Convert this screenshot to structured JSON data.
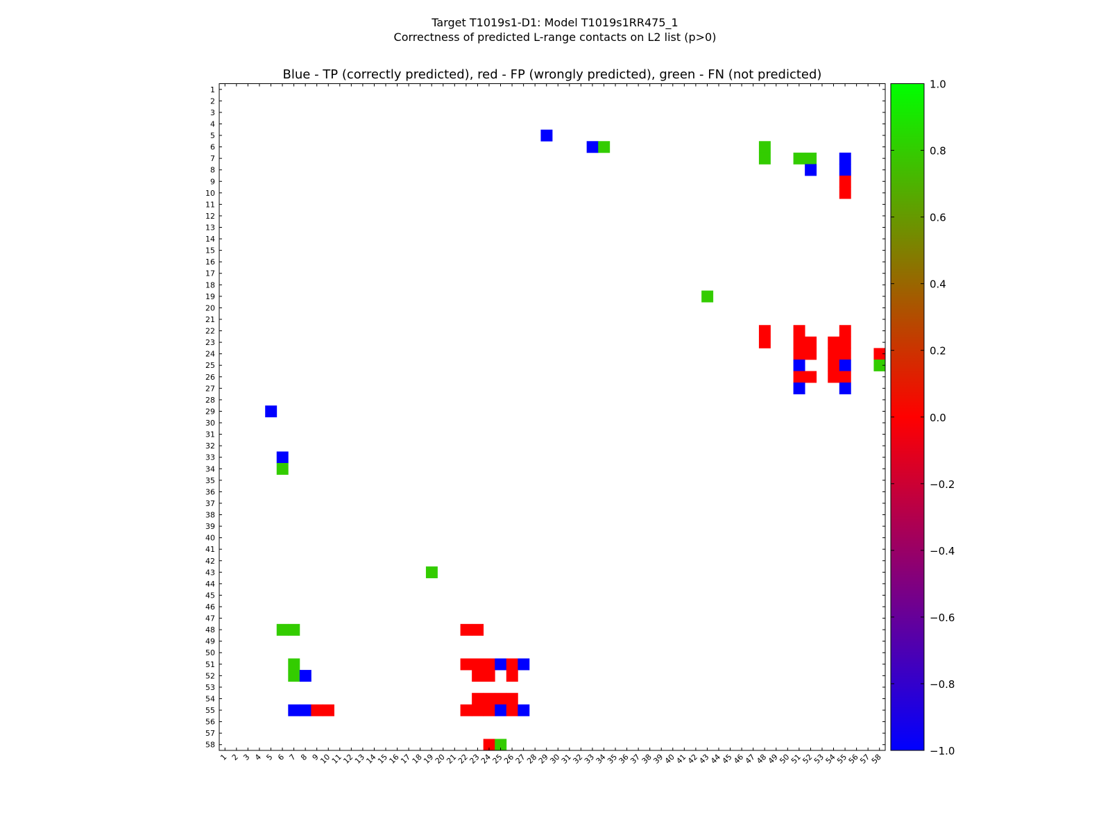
{
  "chart_data": {
    "type": "heatmap",
    "suptitle_line1": "Target T1019s1-D1: Model T1019s1RR475_1",
    "suptitle_line2": "Correctness of predicted L-range contacts on L2 list (p>0)",
    "title": "Blue - TP (correctly predicted), red - FP (wrongly predicted), green - FN (not predicted)",
    "n_residues": 58,
    "x_ticks": [
      "1",
      "2",
      "3",
      "4",
      "5",
      "6",
      "7",
      "8",
      "9",
      "10",
      "11",
      "12",
      "13",
      "14",
      "15",
      "16",
      "17",
      "18",
      "19",
      "20",
      "21",
      "22",
      "23",
      "24",
      "25",
      "26",
      "27",
      "28",
      "29",
      "30",
      "31",
      "32",
      "33",
      "34",
      "35",
      "36",
      "37",
      "38",
      "39",
      "40",
      "41",
      "42",
      "43",
      "44",
      "45",
      "46",
      "47",
      "48",
      "49",
      "50",
      "51",
      "52",
      "53",
      "54",
      "55",
      "56",
      "57",
      "58"
    ],
    "y_ticks": [
      "1",
      "2",
      "3",
      "4",
      "5",
      "6",
      "7",
      "8",
      "9",
      "10",
      "11",
      "12",
      "13",
      "14",
      "15",
      "16",
      "17",
      "18",
      "19",
      "20",
      "21",
      "22",
      "23",
      "24",
      "25",
      "26",
      "27",
      "28",
      "29",
      "30",
      "31",
      "32",
      "33",
      "34",
      "35",
      "36",
      "37",
      "38",
      "39",
      "40",
      "41",
      "42",
      "43",
      "44",
      "45",
      "46",
      "47",
      "48",
      "49",
      "50",
      "51",
      "52",
      "53",
      "54",
      "55",
      "56",
      "57",
      "58"
    ],
    "colorbar": {
      "min": -1.0,
      "max": 1.0,
      "ticks": [
        "1.0",
        "0.8",
        "0.6",
        "0.4",
        "0.2",
        "0.0",
        "−0.2",
        "−0.4",
        "−0.6",
        "−0.8",
        "−1.0"
      ],
      "tick_values": [
        1.0,
        0.8,
        0.6,
        0.4,
        0.2,
        0.0,
        -0.2,
        -0.4,
        -0.6,
        -0.8,
        -1.0
      ],
      "colors": [
        "#0000ff",
        "#ff0000",
        "#00ff00"
      ]
    },
    "categories": {
      "TP": {
        "value": -1.0,
        "color": "#0000ff"
      },
      "FP": {
        "value": 0.0,
        "color": "#ff0000"
      },
      "FN": {
        "value": 0.8,
        "color": "#33cc00"
      }
    },
    "cells": [
      {
        "x": 29,
        "y": 5,
        "c": "TP"
      },
      {
        "x": 33,
        "y": 6,
        "c": "TP"
      },
      {
        "x": 34,
        "y": 6,
        "c": "FN"
      },
      {
        "x": 48,
        "y": 6,
        "c": "FN"
      },
      {
        "x": 48,
        "y": 7,
        "c": "FN"
      },
      {
        "x": 51,
        "y": 7,
        "c": "FN"
      },
      {
        "x": 52,
        "y": 7,
        "c": "FN"
      },
      {
        "x": 55,
        "y": 7,
        "c": "TP"
      },
      {
        "x": 55,
        "y": 8,
        "c": "TP"
      },
      {
        "x": 52,
        "y": 8,
        "c": "TP"
      },
      {
        "x": 55,
        "y": 9,
        "c": "FP"
      },
      {
        "x": 55,
        "y": 10,
        "c": "FP"
      },
      {
        "x": 43,
        "y": 19,
        "c": "FN"
      },
      {
        "x": 48,
        "y": 22,
        "c": "FP"
      },
      {
        "x": 48,
        "y": 23,
        "c": "FP"
      },
      {
        "x": 51,
        "y": 22,
        "c": "FP"
      },
      {
        "x": 51,
        "y": 23,
        "c": "FP"
      },
      {
        "x": 52,
        "y": 23,
        "c": "FP"
      },
      {
        "x": 51,
        "y": 24,
        "c": "FP"
      },
      {
        "x": 52,
        "y": 24,
        "c": "FP"
      },
      {
        "x": 55,
        "y": 22,
        "c": "FP"
      },
      {
        "x": 54,
        "y": 23,
        "c": "FP"
      },
      {
        "x": 55,
        "y": 23,
        "c": "FP"
      },
      {
        "x": 54,
        "y": 24,
        "c": "FP"
      },
      {
        "x": 55,
        "y": 24,
        "c": "FP"
      },
      {
        "x": 58,
        "y": 24,
        "c": "FP"
      },
      {
        "x": 58,
        "y": 25,
        "c": "FN"
      },
      {
        "x": 51,
        "y": 25,
        "c": "TP"
      },
      {
        "x": 54,
        "y": 25,
        "c": "FP"
      },
      {
        "x": 55,
        "y": 25,
        "c": "TP"
      },
      {
        "x": 51,
        "y": 26,
        "c": "FP"
      },
      {
        "x": 52,
        "y": 26,
        "c": "FP"
      },
      {
        "x": 54,
        "y": 26,
        "c": "FP"
      },
      {
        "x": 55,
        "y": 26,
        "c": "FP"
      },
      {
        "x": 51,
        "y": 27,
        "c": "TP"
      },
      {
        "x": 55,
        "y": 27,
        "c": "TP"
      },
      {
        "x": 5,
        "y": 29,
        "c": "TP"
      },
      {
        "x": 6,
        "y": 33,
        "c": "TP"
      },
      {
        "x": 6,
        "y": 34,
        "c": "FN"
      },
      {
        "x": 19,
        "y": 43,
        "c": "FN"
      },
      {
        "x": 6,
        "y": 48,
        "c": "FN"
      },
      {
        "x": 7,
        "y": 48,
        "c": "FN"
      },
      {
        "x": 22,
        "y": 48,
        "c": "FP"
      },
      {
        "x": 23,
        "y": 48,
        "c": "FP"
      },
      {
        "x": 7,
        "y": 51,
        "c": "FN"
      },
      {
        "x": 7,
        "y": 52,
        "c": "FN"
      },
      {
        "x": 8,
        "y": 52,
        "c": "TP"
      },
      {
        "x": 22,
        "y": 51,
        "c": "FP"
      },
      {
        "x": 23,
        "y": 51,
        "c": "FP"
      },
      {
        "x": 24,
        "y": 51,
        "c": "FP"
      },
      {
        "x": 25,
        "y": 51,
        "c": "TP"
      },
      {
        "x": 26,
        "y": 51,
        "c": "FP"
      },
      {
        "x": 27,
        "y": 51,
        "c": "TP"
      },
      {
        "x": 23,
        "y": 52,
        "c": "FP"
      },
      {
        "x": 24,
        "y": 52,
        "c": "FP"
      },
      {
        "x": 26,
        "y": 52,
        "c": "FP"
      },
      {
        "x": 23,
        "y": 54,
        "c": "FP"
      },
      {
        "x": 24,
        "y": 54,
        "c": "FP"
      },
      {
        "x": 25,
        "y": 54,
        "c": "FP"
      },
      {
        "x": 26,
        "y": 54,
        "c": "FP"
      },
      {
        "x": 7,
        "y": 55,
        "c": "TP"
      },
      {
        "x": 8,
        "y": 55,
        "c": "TP"
      },
      {
        "x": 9,
        "y": 55,
        "c": "FP"
      },
      {
        "x": 10,
        "y": 55,
        "c": "FP"
      },
      {
        "x": 22,
        "y": 55,
        "c": "FP"
      },
      {
        "x": 23,
        "y": 55,
        "c": "FP"
      },
      {
        "x": 24,
        "y": 55,
        "c": "FP"
      },
      {
        "x": 25,
        "y": 55,
        "c": "TP"
      },
      {
        "x": 26,
        "y": 55,
        "c": "FP"
      },
      {
        "x": 27,
        "y": 55,
        "c": "TP"
      },
      {
        "x": 24,
        "y": 58,
        "c": "FP"
      },
      {
        "x": 25,
        "y": 58,
        "c": "FN"
      }
    ]
  }
}
